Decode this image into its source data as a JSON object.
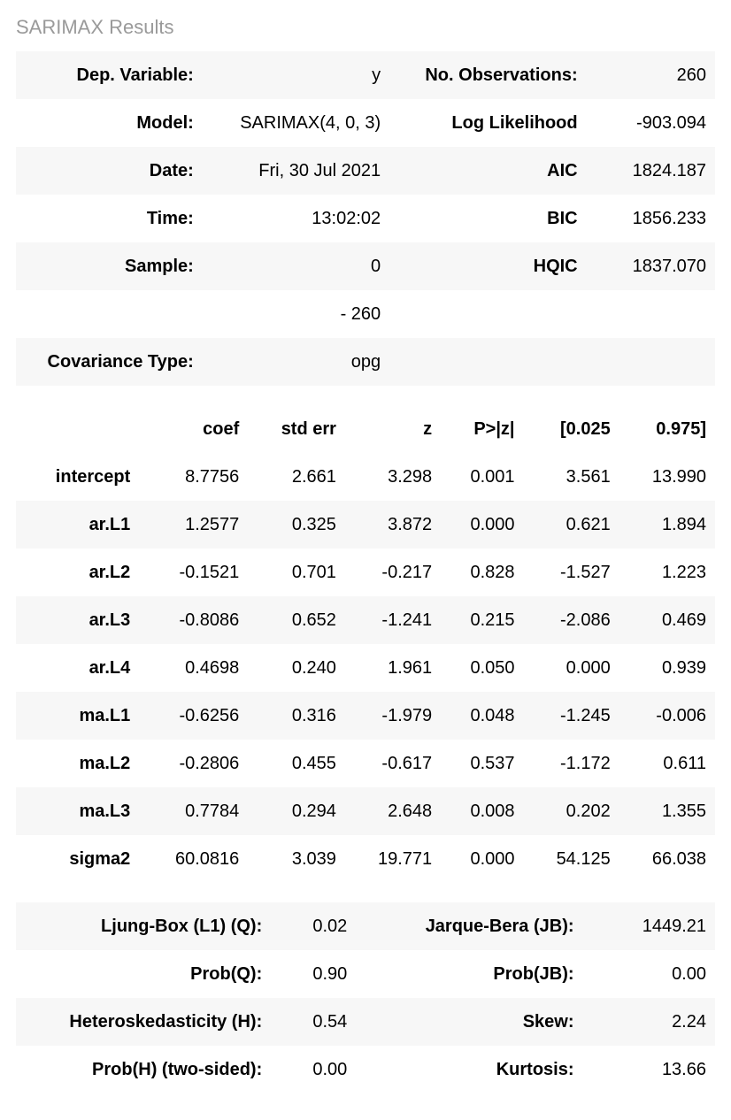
{
  "title": "SARIMAX Results",
  "summary": {
    "rows": [
      {
        "lLabel": "Dep. Variable:",
        "lValue": "y",
        "rLabel": "No. Observations:",
        "rValue": "260",
        "stripe": true
      },
      {
        "lLabel": "Model:",
        "lValue": "SARIMAX(4, 0, 3)",
        "rLabel": "Log Likelihood",
        "rValue": "-903.094",
        "stripe": false
      },
      {
        "lLabel": "Date:",
        "lValue": "Fri, 30 Jul 2021",
        "rLabel": "AIC",
        "rValue": "1824.187",
        "stripe": true
      },
      {
        "lLabel": "Time:",
        "lValue": "13:02:02",
        "rLabel": "BIC",
        "rValue": "1856.233",
        "stripe": false
      },
      {
        "lLabel": "Sample:",
        "lValue": "0",
        "rLabel": "HQIC",
        "rValue": "1837.070",
        "stripe": true
      },
      {
        "lLabel": "",
        "lValue": "- 260",
        "rLabel": "",
        "rValue": "",
        "stripe": false
      },
      {
        "lLabel": "Covariance Type:",
        "lValue": "opg",
        "rLabel": "",
        "rValue": "",
        "stripe": true
      }
    ]
  },
  "coef": {
    "headers": [
      "",
      "coef",
      "std err",
      "z",
      "P>|z|",
      "[0.025",
      "0.975]"
    ],
    "rows": [
      {
        "label": "intercept",
        "vals": [
          "8.7756",
          "2.661",
          "3.298",
          "0.001",
          "3.561",
          "13.990"
        ],
        "stripe": false
      },
      {
        "label": "ar.L1",
        "vals": [
          "1.2577",
          "0.325",
          "3.872",
          "0.000",
          "0.621",
          "1.894"
        ],
        "stripe": true
      },
      {
        "label": "ar.L2",
        "vals": [
          "-0.1521",
          "0.701",
          "-0.217",
          "0.828",
          "-1.527",
          "1.223"
        ],
        "stripe": false
      },
      {
        "label": "ar.L3",
        "vals": [
          "-0.8086",
          "0.652",
          "-1.241",
          "0.215",
          "-2.086",
          "0.469"
        ],
        "stripe": true
      },
      {
        "label": "ar.L4",
        "vals": [
          "0.4698",
          "0.240",
          "1.961",
          "0.050",
          "0.000",
          "0.939"
        ],
        "stripe": false
      },
      {
        "label": "ma.L1",
        "vals": [
          "-0.6256",
          "0.316",
          "-1.979",
          "0.048",
          "-1.245",
          "-0.006"
        ],
        "stripe": true
      },
      {
        "label": "ma.L2",
        "vals": [
          "-0.2806",
          "0.455",
          "-0.617",
          "0.537",
          "-1.172",
          "0.611"
        ],
        "stripe": false
      },
      {
        "label": "ma.L3",
        "vals": [
          "0.7784",
          "0.294",
          "2.648",
          "0.008",
          "0.202",
          "1.355"
        ],
        "stripe": true
      },
      {
        "label": "sigma2",
        "vals": [
          "60.0816",
          "3.039",
          "19.771",
          "0.000",
          "54.125",
          "66.038"
        ],
        "stripe": false
      }
    ]
  },
  "diag": {
    "rows": [
      {
        "lLabel": "Ljung-Box (L1) (Q):",
        "lValue": "0.02",
        "rLabel": "Jarque-Bera (JB):",
        "rValue": "1449.21",
        "stripe": true
      },
      {
        "lLabel": "Prob(Q):",
        "lValue": "0.90",
        "rLabel": "Prob(JB):",
        "rValue": "0.00",
        "stripe": false
      },
      {
        "lLabel": "Heteroskedasticity (H):",
        "lValue": "0.54",
        "rLabel": "Skew:",
        "rValue": "2.24",
        "stripe": true
      },
      {
        "lLabel": "Prob(H) (two-sided):",
        "lValue": "0.00",
        "rLabel": "Kurtosis:",
        "rValue": "13.66",
        "stripe": false
      }
    ]
  }
}
